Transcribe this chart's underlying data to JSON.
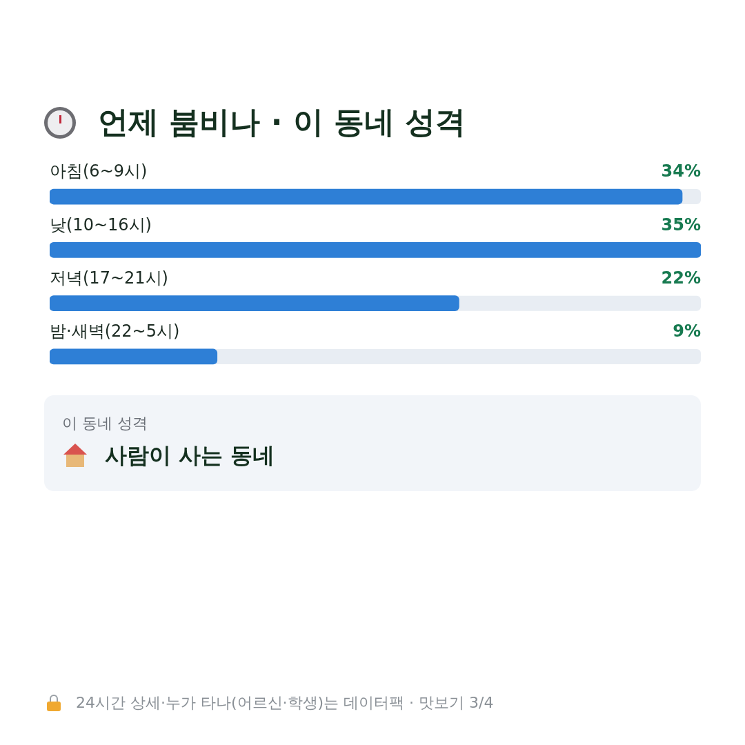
{
  "chart_data": {
    "type": "bar",
    "orientation": "horizontal",
    "title": "언제 붐비나 · 이 동네 성격",
    "categories": [
      "아침(6~9시)",
      "낮(10~16시)",
      "저녁(17~21시)",
      "밤·새벽(22~5시)"
    ],
    "values": [
      34,
      35,
      22,
      9
    ],
    "color": "#2e7fd6",
    "value_labels": [
      "34%",
      "35%",
      "22%",
      "9%"
    ],
    "annotations": [
      "이 동네 성격",
      "사람이 사는 동네",
      "24시간 상세·누가 타나(어르신·학생)는 데이터팩 · 맛보기 3/4"
    ]
  }
}
